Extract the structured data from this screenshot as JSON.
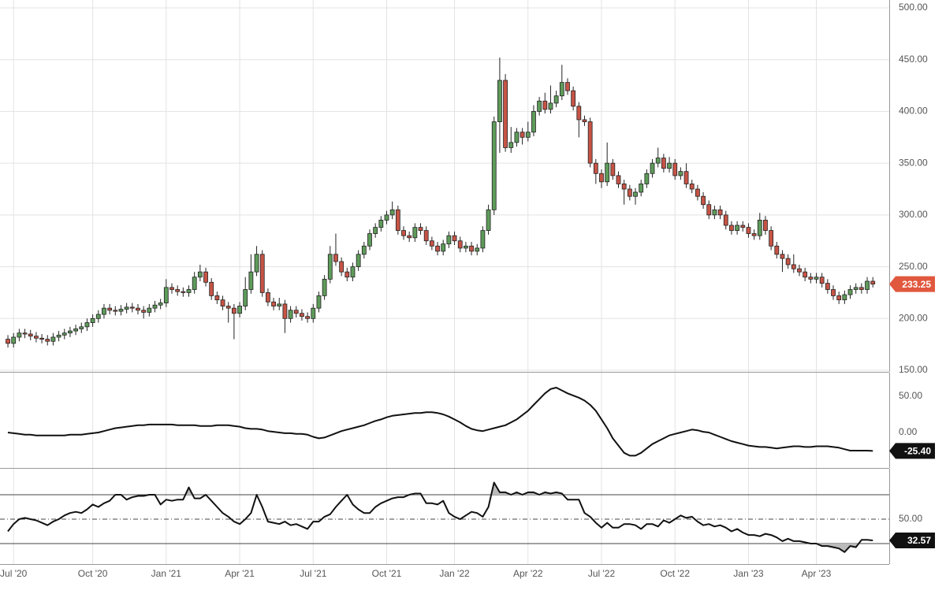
{
  "chart_data": [
    {
      "type": "candlestick",
      "open": [
        180,
        176,
        182,
        186,
        185,
        183,
        181,
        180,
        178,
        182,
        184,
        186,
        188,
        190,
        192,
        196,
        200,
        204,
        210,
        208,
        207,
        209,
        211,
        210,
        208,
        206,
        210,
        213,
        215,
        230,
        228,
        226,
        225,
        228,
        240,
        245,
        235,
        222,
        218,
        212,
        210,
        205,
        212,
        228,
        245,
        262,
        225,
        216,
        212,
        214,
        200,
        208,
        205,
        202,
        200,
        210,
        222,
        238,
        262,
        255,
        245,
        240,
        250,
        262,
        270,
        282,
        288,
        295,
        300,
        305,
        285,
        280,
        278,
        288,
        285,
        275,
        270,
        265,
        272,
        280,
        275,
        268,
        270,
        265,
        268,
        285,
        305,
        390,
        430,
        365,
        370,
        380,
        375,
        380,
        400,
        410,
        402,
        408,
        415,
        428,
        420,
        405,
        392,
        390,
        350,
        340,
        332,
        350,
        338,
        330,
        325,
        318,
        322,
        330,
        340,
        350,
        355,
        345,
        350,
        338,
        342,
        330,
        325,
        318,
        310,
        300,
        305,
        300,
        290,
        285,
        290,
        288,
        282,
        280,
        295,
        285,
        270,
        262,
        258,
        252,
        248,
        245,
        240,
        238,
        240,
        234,
        228,
        222,
        218,
        223,
        228,
        230,
        228,
        236
      ],
      "high": [
        184,
        186,
        190,
        190,
        189,
        187,
        185,
        184,
        186,
        188,
        190,
        192,
        194,
        196,
        200,
        204,
        208,
        214,
        214,
        212,
        213,
        215,
        215,
        214,
        212,
        214,
        217,
        219,
        238,
        234,
        232,
        230,
        232,
        245,
        252,
        249,
        239,
        226,
        222,
        216,
        214,
        216,
        240,
        262,
        270,
        266,
        229,
        220,
        220,
        218,
        212,
        212,
        209,
        206,
        214,
        226,
        242,
        270,
        282,
        259,
        249,
        254,
        266,
        274,
        286,
        292,
        299,
        304,
        313,
        309,
        289,
        284,
        292,
        292,
        289,
        279,
        274,
        276,
        284,
        284,
        279,
        274,
        274,
        272,
        289,
        310,
        395,
        452,
        436,
        385,
        384,
        384,
        390,
        406,
        414,
        418,
        425,
        420,
        445,
        432,
        424,
        409,
        396,
        394,
        354,
        344,
        370,
        354,
        342,
        334,
        329,
        326,
        334,
        344,
        354,
        365,
        359,
        356,
        354,
        346,
        350,
        334,
        329,
        322,
        314,
        309,
        309,
        304,
        294,
        294,
        294,
        292,
        286,
        302,
        299,
        289,
        274,
        266,
        262,
        262,
        252,
        249,
        244,
        244,
        244,
        238,
        232,
        226,
        227,
        232,
        234,
        234,
        240,
        240
      ],
      "low": [
        172,
        172,
        178,
        181,
        179,
        177,
        176,
        174,
        174,
        178,
        180,
        182,
        184,
        186,
        188,
        192,
        196,
        200,
        204,
        203,
        203,
        205,
        206,
        204,
        200,
        202,
        206,
        209,
        211,
        224,
        222,
        221,
        221,
        224,
        236,
        231,
        218,
        214,
        208,
        196,
        180,
        201,
        208,
        224,
        241,
        221,
        212,
        208,
        208,
        186,
        196,
        201,
        198,
        196,
        196,
        206,
        218,
        234,
        251,
        241,
        236,
        236,
        246,
        258,
        266,
        278,
        284,
        291,
        296,
        281,
        276,
        274,
        274,
        281,
        271,
        266,
        261,
        261,
        268,
        271,
        264,
        264,
        261,
        261,
        264,
        281,
        300,
        360,
        361,
        360,
        366,
        368,
        371,
        376,
        396,
        398,
        398,
        404,
        411,
        416,
        401,
        375,
        386,
        346,
        330,
        326,
        328,
        334,
        326,
        310,
        314,
        310,
        318,
        326,
        336,
        346,
        341,
        341,
        334,
        334,
        326,
        321,
        314,
        306,
        296,
        296,
        296,
        286,
        281,
        281,
        284,
        278,
        276,
        276,
        281,
        266,
        258,
        245,
        248,
        244,
        241,
        236,
        234,
        234,
        230,
        224,
        218,
        214,
        214,
        219,
        224,
        224,
        224,
        230
      ],
      "close": [
        176,
        182,
        186,
        185,
        183,
        181,
        180,
        178,
        182,
        184,
        186,
        188,
        190,
        192,
        196,
        200,
        204,
        210,
        208,
        207,
        209,
        211,
        210,
        208,
        206,
        210,
        213,
        215,
        230,
        228,
        226,
        225,
        228,
        240,
        245,
        235,
        222,
        218,
        212,
        210,
        205,
        212,
        228,
        245,
        262,
        225,
        216,
        212,
        214,
        200,
        208,
        205,
        202,
        200,
        210,
        222,
        238,
        262,
        255,
        245,
        240,
        250,
        262,
        270,
        282,
        288,
        295,
        300,
        305,
        285,
        280,
        278,
        288,
        285,
        275,
        270,
        265,
        272,
        280,
        275,
        268,
        270,
        265,
        268,
        285,
        305,
        390,
        430,
        365,
        370,
        380,
        375,
        380,
        400,
        410,
        402,
        408,
        415,
        428,
        420,
        405,
        392,
        390,
        350,
        340,
        332,
        350,
        338,
        330,
        325,
        318,
        322,
        330,
        340,
        350,
        355,
        345,
        350,
        338,
        342,
        330,
        325,
        318,
        310,
        300,
        305,
        300,
        290,
        285,
        290,
        288,
        282,
        280,
        295,
        285,
        270,
        262,
        258,
        252,
        248,
        245,
        240,
        238,
        240,
        234,
        228,
        222,
        218,
        223,
        228,
        230,
        228,
        236,
        233.25
      ],
      "up_color": "#5e9b5a",
      "down_color": "#c65446",
      "last_label": "233.25",
      "badge_color": "#e0583e",
      "ylim": [
        148.5,
        507.6
      ],
      "yticks": [
        {
          "value": 150,
          "label": "150.00"
        },
        {
          "value": 200,
          "label": "200.00"
        },
        {
          "value": 250,
          "label": "250.00"
        },
        {
          "value": 300,
          "label": "300.00"
        },
        {
          "value": 350,
          "label": "350.00"
        },
        {
          "value": 400,
          "label": "400.00"
        },
        {
          "value": 450,
          "label": "450.00"
        },
        {
          "value": 500,
          "label": "500.00"
        }
      ],
      "grid": true
    },
    {
      "type": "line",
      "values": [
        0,
        -1,
        -2,
        -3,
        -3,
        -4,
        -4,
        -4,
        -4,
        -4,
        -4,
        -3,
        -3,
        -3,
        -2,
        -1,
        0,
        2,
        4,
        6,
        7,
        8,
        9,
        10,
        10,
        11,
        11,
        11,
        11,
        11,
        10,
        10,
        10,
        10,
        9,
        9,
        9,
        10,
        10,
        10,
        9,
        8,
        6,
        5,
        5,
        4,
        2,
        1,
        0,
        -1,
        -1,
        -2,
        -2,
        -3,
        -6,
        -8,
        -7,
        -4,
        -1,
        2,
        4,
        6,
        8,
        10,
        13,
        16,
        18,
        21,
        23,
        24,
        25,
        26,
        27,
        27,
        28,
        28,
        27,
        25,
        22,
        18,
        14,
        9,
        5,
        3,
        2,
        4,
        6,
        8,
        10,
        14,
        18,
        24,
        30,
        38,
        46,
        54,
        60,
        62,
        58,
        54,
        51,
        48,
        44,
        38,
        30,
        18,
        6,
        -8,
        -18,
        -28,
        -32,
        -32,
        -28,
        -22,
        -16,
        -12,
        -8,
        -4,
        -2,
        0,
        2,
        4,
        3,
        1,
        0,
        -3,
        -6,
        -9,
        -12,
        -14,
        -16,
        -18,
        -19,
        -20,
        -20,
        -21,
        -22,
        -21,
        -20,
        -19,
        -19,
        -20,
        -20,
        -19,
        -19,
        -19,
        -20,
        -21,
        -23,
        -25,
        -25,
        -25,
        -25,
        -25.4
      ],
      "color": "#111111",
      "last_label": "-25.40",
      "badge_color": "#111111",
      "ylim": [
        -48.9,
        82.6
      ],
      "yticks": [
        {
          "value": 0,
          "label": "0.00"
        },
        {
          "value": 50,
          "label": "50.00"
        }
      ],
      "grid": false
    },
    {
      "type": "line",
      "values": [
        40,
        46,
        50,
        51,
        50,
        49,
        47,
        45,
        48,
        50,
        53,
        55,
        56,
        55,
        58,
        62,
        60,
        63,
        65,
        70,
        70,
        66,
        68,
        69,
        69,
        70,
        70,
        62,
        66,
        65,
        66,
        66,
        76,
        67,
        67,
        70,
        65,
        60,
        55,
        52,
        48,
        46,
        50,
        55,
        70,
        60,
        48,
        47,
        46,
        48,
        45,
        46,
        44,
        42,
        48,
        48,
        52,
        54,
        60,
        65,
        70,
        62,
        58,
        55,
        55,
        60,
        63,
        65,
        67,
        68,
        68,
        70,
        71,
        71,
        63,
        63,
        62,
        65,
        55,
        52,
        50,
        53,
        56,
        55,
        52,
        60,
        80,
        72,
        72,
        70,
        72,
        70,
        72,
        72,
        70,
        72,
        71,
        72,
        71,
        66,
        66,
        66,
        55,
        52,
        47,
        43,
        47,
        43,
        43,
        46,
        46,
        45,
        42,
        46,
        46,
        44,
        49,
        47,
        50,
        53,
        51,
        52,
        48,
        45,
        46,
        44,
        45,
        43,
        40,
        42,
        39,
        37,
        37,
        36,
        38,
        37,
        35,
        32,
        34,
        32,
        32,
        31,
        30,
        30,
        28,
        28,
        27,
        26,
        23,
        28,
        27,
        33,
        33,
        32.57
      ],
      "color": "#111111",
      "last_label": "32.57",
      "badge_color": "#111111",
      "levels": [
        30,
        70
      ],
      "ylim": [
        13.2,
        91.3
      ],
      "yticks": [
        {
          "value": 50,
          "label": "50.00"
        }
      ],
      "grid": true,
      "xlim": [
        -1.4,
        155.9
      ],
      "xticks": [
        {
          "value": 1,
          "label": "Jul '20"
        },
        {
          "value": 15,
          "label": "Oct '20"
        },
        {
          "value": 28,
          "label": "Jan '21"
        },
        {
          "value": 41,
          "label": "Apr '21"
        },
        {
          "value": 54,
          "label": "Jul '21"
        },
        {
          "value": 67,
          "label": "Oct '21"
        },
        {
          "value": 79,
          "label": "Jan '22"
        },
        {
          "value": 92,
          "label": "Apr '22"
        },
        {
          "value": 105,
          "label": "Jul '22"
        },
        {
          "value": 118,
          "label": "Oct '22"
        },
        {
          "value": 131,
          "label": "Jan '23"
        },
        {
          "value": 143,
          "label": "Apr '23"
        }
      ]
    }
  ]
}
